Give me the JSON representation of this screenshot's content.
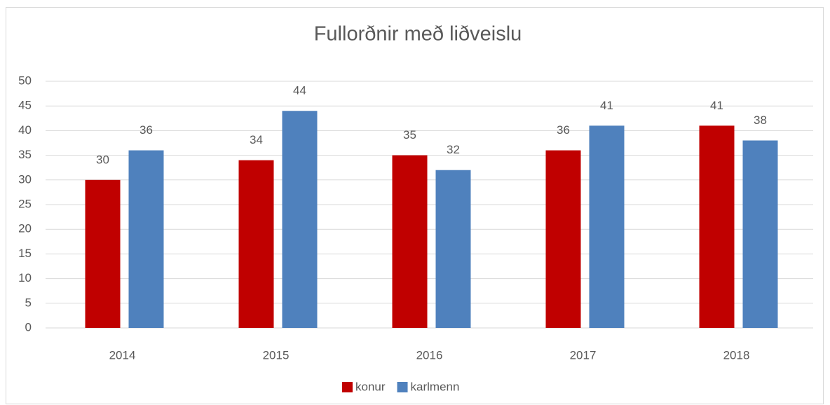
{
  "chart_data": {
    "type": "bar",
    "title": "Fullorðnir með liðveislu",
    "categories": [
      "2014",
      "2015",
      "2016",
      "2017",
      "2018"
    ],
    "series": [
      {
        "name": "konur",
        "color": "#c00000",
        "values": [
          30,
          34,
          35,
          36,
          41
        ]
      },
      {
        "name": "karlmenn",
        "color": "#4f81bd",
        "values": [
          36,
          44,
          32,
          41,
          38
        ]
      }
    ],
    "ylim": [
      0,
      50
    ],
    "yticks": [
      0,
      5,
      10,
      15,
      20,
      25,
      30,
      35,
      40,
      45,
      50
    ],
    "grid": true,
    "legend": "bottom"
  }
}
